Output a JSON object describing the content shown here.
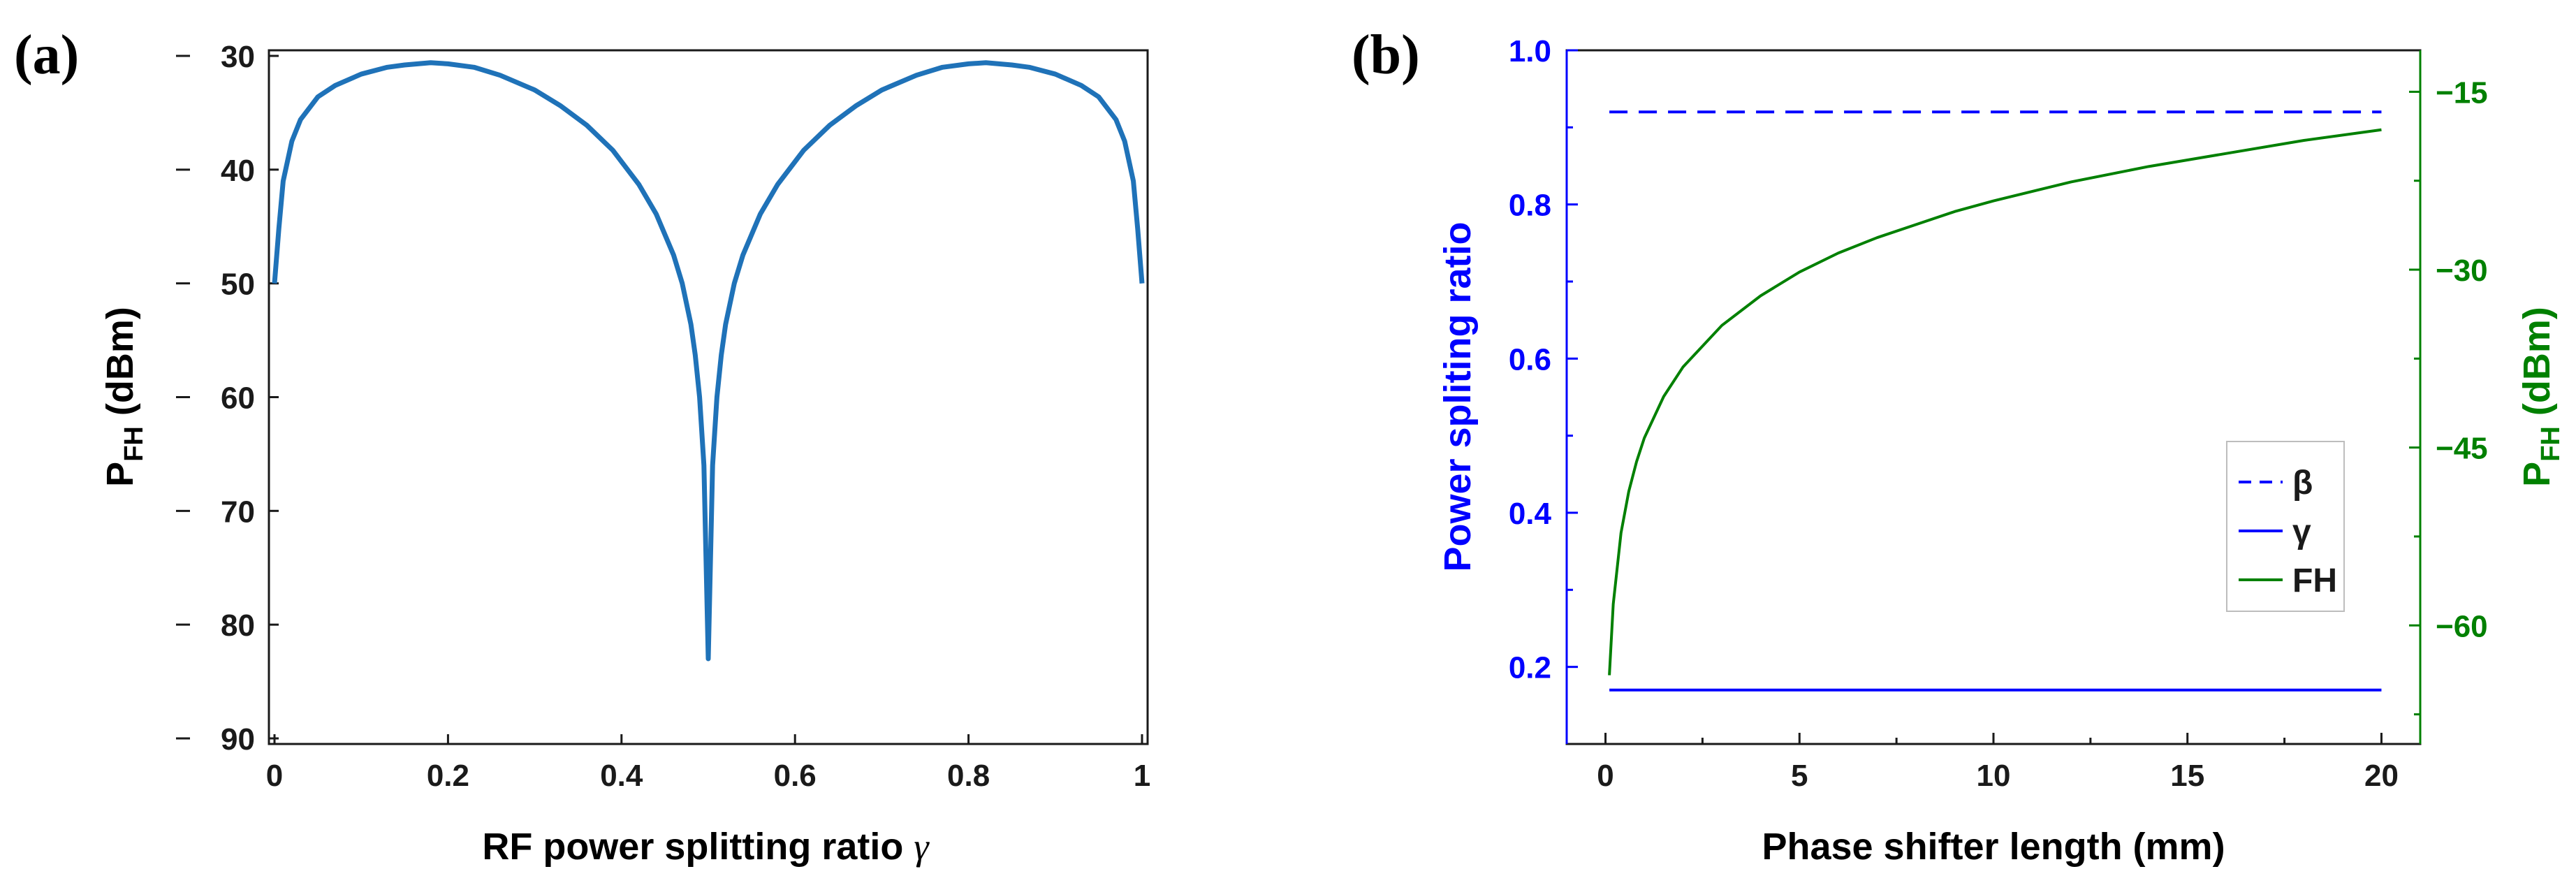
{
  "chart_data": [
    {
      "type": "line",
      "panel_label": "(a)",
      "title": "",
      "xlabel": "RF power splitting ratio",
      "xlabel_symbol": "γ",
      "ylabel_main": "P",
      "ylabel_sub": "FH",
      "ylabel_unit": " (dBm)",
      "xlim": [
        0,
        1
      ],
      "ylim": [
        -90,
        -30
      ],
      "y_reversed_display": true,
      "xticks": [
        0,
        0.2,
        0.4,
        0.6,
        0.8,
        1
      ],
      "xtick_labels": [
        "0",
        "0.2",
        "0.4",
        "0.6",
        "0.8",
        "1"
      ],
      "yticks": [
        -30,
        -40,
        -50,
        -60,
        -70,
        -80,
        -90
      ],
      "ytick_labels": [
        "30",
        "40",
        "50",
        "60",
        "70",
        "80",
        "90"
      ],
      "series": [
        {
          "name": "P_FH",
          "color": "#1f72b8",
          "x": [
            0.0,
            0.005,
            0.01,
            0.02,
            0.03,
            0.05,
            0.07,
            0.1,
            0.13,
            0.15,
            0.18,
            0.2,
            0.23,
            0.26,
            0.3,
            0.33,
            0.36,
            0.39,
            0.42,
            0.44,
            0.46,
            0.47,
            0.48,
            0.485,
            0.49,
            0.495,
            0.5,
            0.505,
            0.51,
            0.515,
            0.52,
            0.53,
            0.54,
            0.56,
            0.58,
            0.61,
            0.64,
            0.67,
            0.7,
            0.74,
            0.77,
            0.8,
            0.82,
            0.85,
            0.87,
            0.9,
            0.93,
            0.95,
            0.97,
            0.98,
            0.99,
            0.995,
            1.0
          ],
          "y": [
            -50,
            -45.2,
            -41,
            -37.5,
            -35.6,
            -33.6,
            -32.6,
            -31.6,
            -31.0,
            -30.8,
            -30.6,
            -30.7,
            -31.0,
            -31.7,
            -33.0,
            -34.4,
            -36.1,
            -38.3,
            -41.3,
            -43.9,
            -47.5,
            -50.0,
            -53.6,
            -56.3,
            -60.0,
            -66.0,
            -83,
            -66.0,
            -60.0,
            -56.3,
            -53.6,
            -50.0,
            -47.5,
            -43.9,
            -41.3,
            -38.3,
            -36.1,
            -34.4,
            -33.0,
            -31.7,
            -31.0,
            -30.7,
            -30.6,
            -30.8,
            -31.0,
            -31.6,
            -32.6,
            -33.6,
            -35.6,
            -37.5,
            -41,
            -45.2,
            -50
          ]
        }
      ]
    },
    {
      "type": "line",
      "panel_label": "(b)",
      "title": "",
      "xlabel": "Phase shifter length (mm)",
      "ylabel_left": "Power spliting ratio",
      "ylabel_right_main": "P",
      "ylabel_right_sub": "FH",
      "ylabel_right_unit": " (dBm)",
      "xlim": [
        -1,
        21
      ],
      "ylim_left": [
        0.1,
        1.0
      ],
      "ylim_right": [
        -70,
        -11.5
      ],
      "xticks": [
        0,
        5,
        10,
        15,
        20
      ],
      "xtick_labels": [
        "0",
        "5",
        "10",
        "15",
        "20"
      ],
      "yticks_left": [
        0.2,
        0.4,
        0.6,
        0.8,
        1.0
      ],
      "ytick_labels_left": [
        "0.2",
        "0.4",
        "0.6",
        "0.8",
        "1.0"
      ],
      "yticks_right": [
        -15,
        -30,
        -45,
        -60
      ],
      "ytick_labels_right": [
        "−15",
        "−30",
        "−45",
        "−60"
      ],
      "left_axis_color": "#0000ff",
      "right_axis_color": "#008000",
      "series": [
        {
          "name": "β",
          "axis": "left",
          "style": "dashed",
          "color": "#0000ff",
          "x": [
            0.1,
            20
          ],
          "y": [
            0.92,
            0.92
          ]
        },
        {
          "name": "γ",
          "axis": "left",
          "style": "solid",
          "color": "#0000ff",
          "x": [
            0.1,
            20
          ],
          "y": [
            0.17,
            0.17
          ]
        },
        {
          "name": "FH",
          "axis": "right",
          "style": "solid",
          "color": "#008000",
          "x": [
            0.1,
            0.2,
            0.4,
            0.6,
            0.8,
            1.0,
            1.5,
            2,
            3,
            4,
            5,
            6,
            7,
            8,
            9,
            10,
            12,
            14,
            16,
            18,
            20
          ],
          "y": [
            -64.2,
            -58.2,
            -52.2,
            -48.7,
            -46.2,
            -44.2,
            -40.7,
            -38.2,
            -34.7,
            -32.2,
            -30.2,
            -28.6,
            -27.3,
            -26.2,
            -25.1,
            -24.2,
            -22.6,
            -21.3,
            -20.2,
            -19.1,
            -18.2
          ]
        }
      ],
      "legend_position": "right-middle",
      "legend": [
        "β",
        "γ",
        "FH"
      ]
    }
  ]
}
